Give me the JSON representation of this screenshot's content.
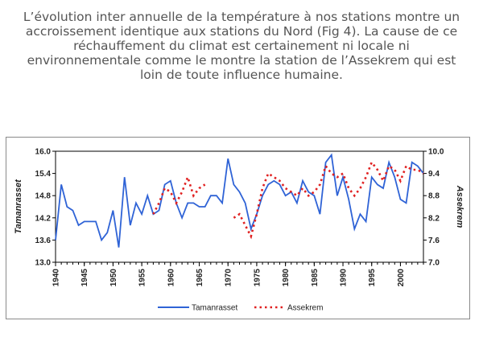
{
  "caption": {
    "text": "L’évolution inter annuelle  de la température à nos stations montre un accroissement  identique  aux stations du Nord (Fig 4).  La cause de ce réchauffement du climat est certainement ni locale ni environnementale comme le montre la station de l’Assekrem qui est loin de toute influence humaine."
  },
  "chart_data": {
    "type": "line",
    "title": "",
    "ylabel": "Tamanrasset",
    "y2label": "Assekrem",
    "xlim": [
      1940,
      2004
    ],
    "ylim": [
      13.0,
      16.0
    ],
    "y2lim": [
      7.0,
      10.0
    ],
    "yticks": [
      "13.0",
      "13.6",
      "14.2",
      "14.8",
      "15.4",
      "16.0"
    ],
    "y2ticks": [
      "7.0",
      "7.6",
      "8.2",
      "8.8",
      "9.4",
      "10.0"
    ],
    "xticks": [
      "1940",
      "1945",
      "1950",
      "1955",
      "1960",
      "1965",
      "1970",
      "1975",
      "1980",
      "1985",
      "1990",
      "1995",
      "2000"
    ],
    "legend_position": "bottom",
    "grid": false,
    "series": [
      {
        "name": "Tamanrasset",
        "axis": "left",
        "color": "#2f63d6",
        "style": "solid",
        "x": [
          1940,
          1941,
          1942,
          1943,
          1944,
          1945,
          1946,
          1947,
          1948,
          1949,
          1950,
          1951,
          1952,
          1953,
          1954,
          1955,
          1956,
          1957,
          1958,
          1959,
          1960,
          1961,
          1962,
          1963,
          1964,
          1965,
          1966,
          1967,
          1968,
          1969,
          1970,
          1971,
          1972,
          1973,
          1974,
          1975,
          1976,
          1977,
          1978,
          1979,
          1980,
          1981,
          1982,
          1983,
          1984,
          1985,
          1986,
          1987,
          1988,
          1989,
          1990,
          1991,
          1992,
          1993,
          1994,
          1995,
          1996,
          1997,
          1998,
          1999,
          2000,
          2001,
          2002,
          2003,
          2004
        ],
        "y": [
          13.6,
          15.1,
          14.5,
          14.4,
          14.0,
          14.1,
          14.1,
          14.1,
          13.6,
          13.8,
          14.4,
          13.4,
          15.3,
          14.0,
          14.6,
          14.3,
          14.8,
          14.3,
          14.4,
          15.1,
          15.2,
          14.6,
          14.2,
          14.6,
          14.6,
          14.5,
          14.5,
          14.8,
          14.8,
          14.6,
          15.8,
          15.1,
          14.9,
          14.6,
          13.9,
          14.3,
          14.8,
          15.1,
          15.2,
          15.1,
          14.8,
          14.9,
          14.6,
          15.2,
          14.9,
          14.8,
          14.3,
          15.7,
          15.9,
          14.8,
          15.3,
          14.7,
          13.9,
          14.3,
          14.1,
          15.3,
          15.1,
          15.0,
          15.7,
          15.3,
          14.7,
          14.6,
          15.7,
          15.6,
          15.4
        ]
      },
      {
        "name": "Assekrem",
        "axis": "right",
        "color": "#e02020",
        "style": "dotted",
        "x": [
          1957,
          1958,
          1959,
          1960,
          1961,
          1962,
          1963,
          1964,
          1965,
          1966,
          1971,
          1972,
          1973,
          1974,
          1975,
          1976,
          1977,
          1978,
          1979,
          1980,
          1981,
          1982,
          1983,
          1984,
          1985,
          1986,
          1987,
          1988,
          1989,
          1990,
          1991,
          1992,
          1993,
          1994,
          1995,
          1996,
          1997,
          1998,
          1999,
          2000,
          2001,
          2002,
          2003,
          2004
        ],
        "y": [
          8.3,
          8.6,
          9.0,
          8.9,
          8.6,
          8.9,
          9.3,
          8.8,
          9.0,
          9.1,
          8.2,
          8.3,
          8.0,
          7.7,
          8.3,
          9.0,
          9.4,
          9.3,
          9.2,
          9.0,
          8.9,
          8.8,
          9.0,
          8.8,
          8.9,
          9.1,
          9.6,
          9.4,
          9.3,
          9.4,
          9.0,
          8.8,
          9.0,
          9.3,
          9.7,
          9.5,
          9.2,
          9.6,
          9.5,
          9.2,
          9.6,
          9.5,
          9.5,
          9.4
        ]
      }
    ]
  }
}
